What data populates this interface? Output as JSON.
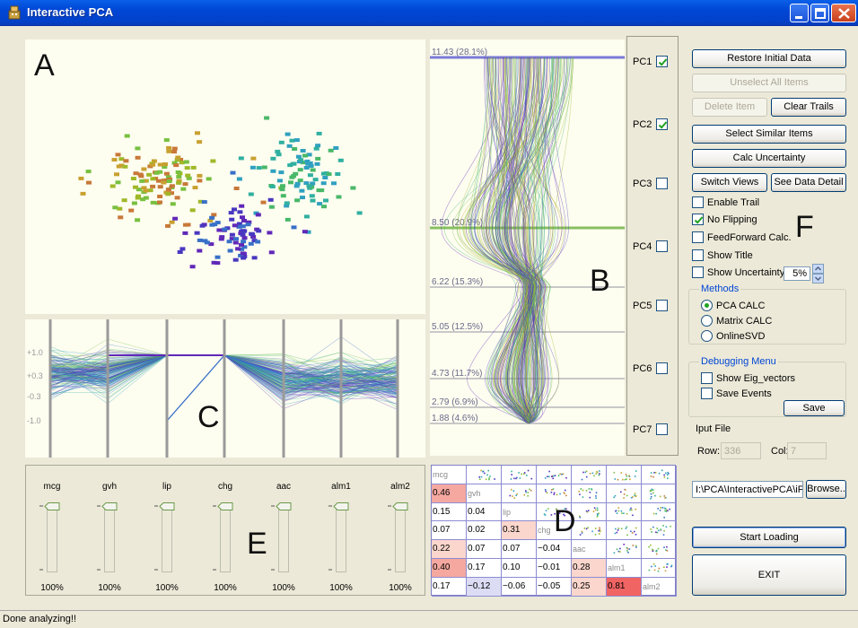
{
  "window": {
    "title": "Interactive PCA"
  },
  "panel_labels": {
    "a": "A",
    "b": "B",
    "c": "C",
    "d": "D",
    "e": "E",
    "f": "F"
  },
  "colors": {
    "title_bar": "#0a5fe8",
    "panel_bg": "#fdfdf0",
    "purple": "#5a2bc8",
    "green": "#78c850",
    "teal": "#28b4b4",
    "orange": "#c8783c",
    "highlight_red": "#f06464",
    "highlight_pink": "#f8c8c0"
  },
  "pc_plot": {
    "axis_labels": [
      "11.43 (28.1%)",
      "8.50 (20.9%)",
      "6.22 (15.3%)",
      "5.05 (12.5%)",
      "4.73 (11.7%)",
      "2.79 (6.9%)",
      "1.88 (4.6%)"
    ]
  },
  "pc_toggles": [
    {
      "label": "PC1",
      "checked": true
    },
    {
      "label": "PC2",
      "checked": true
    },
    {
      "label": "PC3",
      "checked": false
    },
    {
      "label": "PC4",
      "checked": false
    },
    {
      "label": "PC5",
      "checked": false
    },
    {
      "label": "PC6",
      "checked": false
    },
    {
      "label": "PC7",
      "checked": false
    }
  ],
  "parallel_coords": {
    "y_ticks": [
      "+1.0",
      "+0.3",
      "-0.3",
      "-1.0"
    ]
  },
  "controls": {
    "restore": "Restore Initial Data",
    "unselect_all": "Unselect All Items",
    "delete_item": "Delete Item",
    "clear_trails": "Clear Trails",
    "select_similar": "Select Similar Items",
    "calc_uncertainty": "Calc Uncertainty",
    "switch_views": "Switch Views",
    "see_data_detail": "See Data Detail",
    "enable_trail": {
      "label": "Enable Trail",
      "checked": false
    },
    "no_flipping": {
      "label": "No Flipping",
      "checked": true
    },
    "feedforward": {
      "label": "FeedForward Calc.",
      "checked": false
    },
    "show_title": {
      "label": "Show Title",
      "checked": false
    },
    "show_uncertainty": {
      "label": "Show Uncertainty",
      "checked": false
    },
    "uncertainty_value": "5%",
    "methods_title": "Methods",
    "methods": [
      {
        "label": "PCA CALC",
        "selected": true
      },
      {
        "label": "Matrix CALC",
        "selected": false
      },
      {
        "label": "OnlineSVD",
        "selected": false
      }
    ],
    "debug_title": "Debugging Menu",
    "show_eig": {
      "label": "Show Eig_vectors",
      "checked": false
    },
    "save_events": {
      "label": "Save Events",
      "checked": false
    },
    "save": "Save",
    "input_file_label": "Iput File",
    "row_label": "Row:",
    "row_value": "336",
    "col_label": "Col:",
    "col_value": "7",
    "file_path": "I:\\PCA\\InteractivePCA\\iF",
    "browse": "Browse..",
    "start_loading": "Start Loading",
    "exit": "EXIT"
  },
  "matrix": {
    "variables": [
      "mcg",
      "gvh",
      "lip",
      "chg",
      "aac",
      "alm1",
      "alm2"
    ],
    "rows": [
      [
        "mcg",
        "",
        "",
        "",
        "",
        "",
        ""
      ],
      [
        "0.46",
        "gvh",
        "",
        "",
        "",
        "",
        ""
      ],
      [
        "0.15",
        "0.04",
        "lip",
        "",
        "",
        "",
        ""
      ],
      [
        "0.07",
        "0.02",
        "0.31",
        "chg",
        "",
        "",
        ""
      ],
      [
        "0.22",
        "0.07",
        "0.07",
        "−0.04",
        "aac",
        "",
        ""
      ],
      [
        "0.40",
        "0.17",
        "0.10",
        "−0.01",
        "0.28",
        "alm1",
        ""
      ],
      [
        "0.17",
        "−0.12",
        "−0.06",
        "−0.05",
        "0.25",
        "0.81",
        "alm2"
      ]
    ]
  },
  "sliders": [
    {
      "label": "mcg",
      "value": "100%",
      "fraction": 1.0
    },
    {
      "label": "gvh",
      "value": "100%",
      "fraction": 1.0
    },
    {
      "label": "lip",
      "value": "100%",
      "fraction": 1.0
    },
    {
      "label": "chg",
      "value": "100%",
      "fraction": 1.0
    },
    {
      "label": "aac",
      "value": "100%",
      "fraction": 1.0
    },
    {
      "label": "alm1",
      "value": "100%",
      "fraction": 1.0
    },
    {
      "label": "alm2",
      "value": "100%",
      "fraction": 1.0
    }
  ],
  "status": "Done analyzing!!"
}
